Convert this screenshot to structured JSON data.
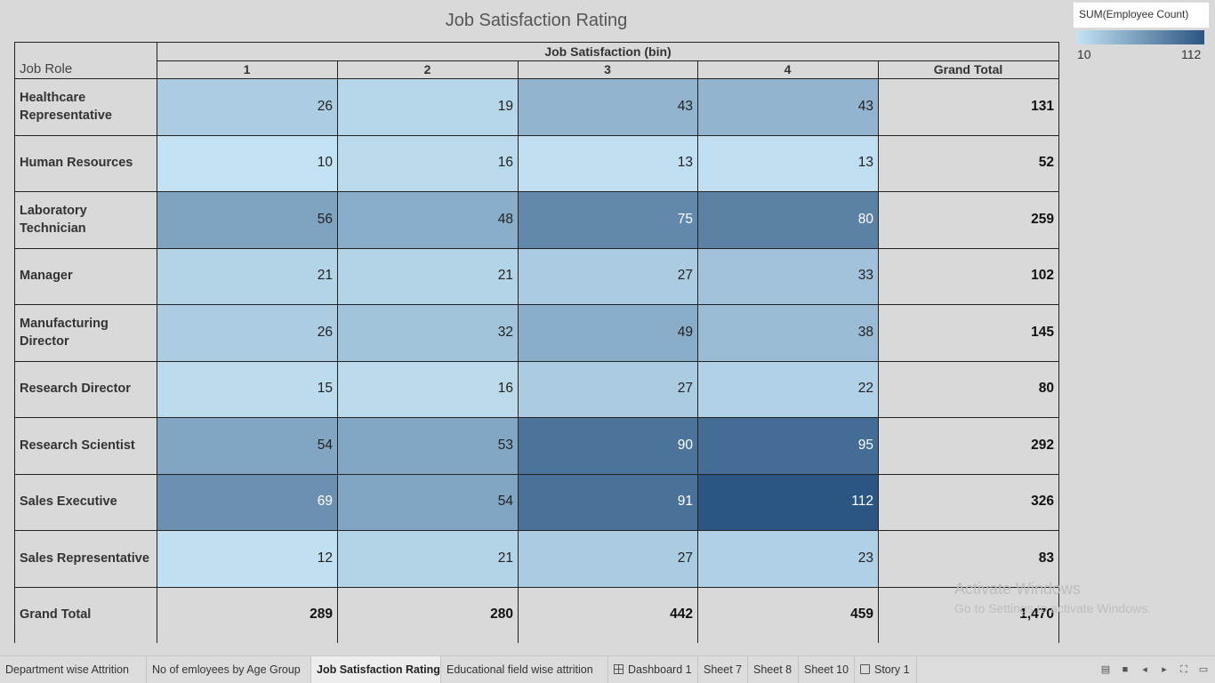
{
  "title": "Job Satisfaction Rating",
  "legend": {
    "title": "SUM(Employee Count)",
    "min": "10",
    "max": "112"
  },
  "colors": {
    "low": "#c3e2f3",
    "high": "#2b5582"
  },
  "chart_data": {
    "type": "heatmap",
    "title": "Job Satisfaction Rating",
    "column_group_label": "Job Satisfaction (bin)",
    "row_header": "Job Role",
    "columns": [
      "1",
      "2",
      "3",
      "4"
    ],
    "total_label": "Grand Total",
    "rows": [
      {
        "label": "Healthcare Representative",
        "values": [
          26,
          19,
          43,
          43
        ],
        "total": "131"
      },
      {
        "label": "Human Resources",
        "values": [
          10,
          16,
          13,
          13
        ],
        "total": "52"
      },
      {
        "label": "Laboratory Technician",
        "values": [
          56,
          48,
          75,
          80
        ],
        "total": "259"
      },
      {
        "label": "Manager",
        "values": [
          21,
          21,
          27,
          33
        ],
        "total": "102"
      },
      {
        "label": "Manufacturing Director",
        "values": [
          26,
          32,
          49,
          38
        ],
        "total": "145"
      },
      {
        "label": "Research Director",
        "values": [
          15,
          16,
          27,
          22
        ],
        "total": "80"
      },
      {
        "label": "Research Scientist",
        "values": [
          54,
          53,
          90,
          95
        ],
        "total": "292"
      },
      {
        "label": "Sales Executive",
        "values": [
          69,
          54,
          91,
          112
        ],
        "total": "326"
      },
      {
        "label": "Sales Representative",
        "values": [
          12,
          21,
          27,
          23
        ],
        "total": "83"
      }
    ],
    "grand_total_row": {
      "label": "Grand Total",
      "values": [
        "289",
        "280",
        "442",
        "459"
      ],
      "total": "1,470"
    },
    "color_range": [
      10,
      112
    ]
  },
  "watermark": {
    "line1": "Activate Windows",
    "line2": "Go to Settings to activate Windows."
  },
  "tabs": [
    {
      "label": "Department wise  Attrition",
      "icon": "",
      "active": false
    },
    {
      "label": "No of emloyees by Age Group",
      "icon": "",
      "active": false
    },
    {
      "label": "Job Satisfaction Rating",
      "icon": "",
      "active": true
    },
    {
      "label": "Educational field wise attrition",
      "icon": "",
      "active": false
    },
    {
      "label": "Dashboard 1",
      "icon": "dashboard-icon",
      "active": false
    },
    {
      "label": "Sheet 7",
      "icon": "",
      "active": false
    },
    {
      "label": "Sheet 8",
      "icon": "",
      "active": false
    },
    {
      "label": "Sheet 10",
      "icon": "",
      "active": false
    },
    {
      "label": "Story 1",
      "icon": "story-icon",
      "active": false
    }
  ]
}
